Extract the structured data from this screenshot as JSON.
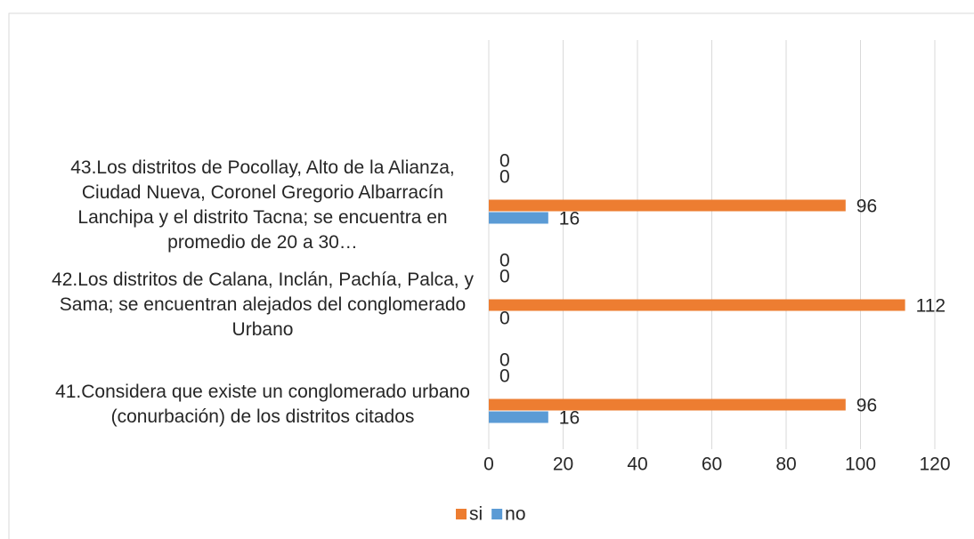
{
  "chart_data": {
    "type": "bar",
    "orientation": "horizontal",
    "categories": [
      "41.Considera que existe un conglomerado urbano (conurbación) de los distritos citados",
      "42.Los distritos de Calana,  Inclán, Pachía, Palca,  y Sama; se encuentran alejados del conglomerado Urbano",
      "43.Los distritos de Pocollay, Alto de la Alianza, Ciudad Nueva, Coronel Gregorio Albarracín Lanchipa y el distrito Tacna; se encuentra en promedio de 20 a 30…"
    ],
    "series": [
      {
        "values": [
          0,
          0,
          0
        ]
      },
      {
        "values": [
          0,
          0,
          0
        ]
      },
      {
        "name": "si",
        "color": "#ed7d31",
        "values": [
          96,
          112,
          96
        ]
      },
      {
        "name": "no",
        "color": "#5b9bd5",
        "values": [
          16,
          0,
          16
        ]
      }
    ],
    "xlim": [
      0,
      120
    ],
    "xticks": [
      0,
      20,
      40,
      60,
      80,
      100,
      120
    ],
    "grid": true,
    "legend": "bottom"
  }
}
